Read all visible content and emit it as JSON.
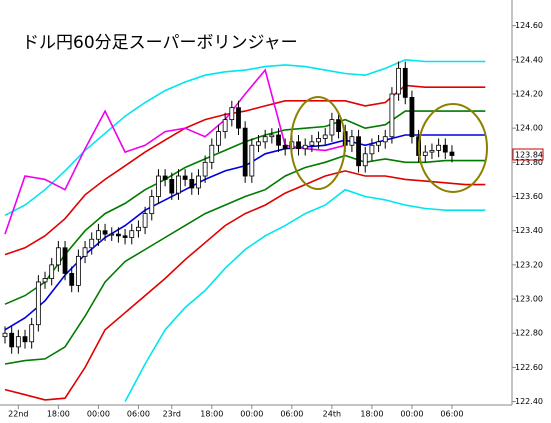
{
  "chart_data": {
    "type": "candlestick",
    "title": "ドル円60分足スーパーボリンジャー",
    "last_price_label": "123.84",
    "up_color": "#ffffff",
    "down_color": "#000000",
    "xlim": [
      -0.75,
      76
    ],
    "ylim": [
      122.38,
      124.75
    ],
    "xticks": [
      {
        "value": 2,
        "label": "22nd"
      },
      {
        "value": 8,
        "label": "18:00"
      },
      {
        "value": 14,
        "label": "00:00"
      },
      {
        "value": 20,
        "label": "06:00"
      },
      {
        "value": 25,
        "label": "23rd"
      },
      {
        "value": 31,
        "label": "18:00"
      },
      {
        "value": 37,
        "label": "00:00"
      },
      {
        "value": 43,
        "label": "06:00"
      },
      {
        "value": 49,
        "label": "24th"
      },
      {
        "value": 55,
        "label": "18:00"
      },
      {
        "value": 61,
        "label": "00:00"
      },
      {
        "value": 67,
        "label": "06:00"
      }
    ],
    "yticks": [
      {
        "value": 124.6,
        "label": "124.60"
      },
      {
        "value": 124.4,
        "label": "124.40"
      },
      {
        "value": 124.2,
        "label": "124.20"
      },
      {
        "value": 124.0,
        "label": "124.00"
      },
      {
        "value": 123.8,
        "label": "123.80"
      },
      {
        "value": 123.6,
        "label": "123.60"
      },
      {
        "value": 123.4,
        "label": "123.40"
      },
      {
        "value": 123.2,
        "label": "123.20"
      },
      {
        "value": 123.0,
        "label": "123.00"
      },
      {
        "value": 122.8,
        "label": "122.80"
      },
      {
        "value": 122.6,
        "label": "122.60"
      },
      {
        "value": 122.4,
        "label": "122.40"
      }
    ],
    "open": [
      122.78,
      122.8,
      122.72,
      122.78,
      122.75,
      122.85,
      123.1,
      123.12,
      123.2,
      123.3,
      123.15,
      123.08,
      123.25,
      123.3,
      123.35,
      123.4,
      123.38,
      123.38,
      123.37,
      123.36,
      123.4,
      123.42,
      123.5,
      123.6,
      123.72,
      123.7,
      123.62,
      123.72,
      123.7,
      123.65,
      123.72,
      123.8,
      123.9,
      123.98,
      124.05,
      124.12,
      124.0,
      123.72,
      123.9,
      123.92,
      123.95,
      123.96,
      123.9,
      123.88,
      123.92,
      123.88,
      123.9,
      123.92,
      123.94,
      123.96,
      124.05,
      123.98,
      123.9,
      123.95,
      123.78,
      123.85,
      123.9,
      123.92,
      123.95,
      124.2,
      124.35,
      124.18,
      123.95,
      123.84,
      123.86,
      123.87,
      123.9,
      123.86
    ],
    "high": [
      122.84,
      122.84,
      122.82,
      122.82,
      122.89,
      123.14,
      123.16,
      123.24,
      123.34,
      123.34,
      123.19,
      123.29,
      123.34,
      123.39,
      123.44,
      123.44,
      123.42,
      123.42,
      123.41,
      123.44,
      123.46,
      123.54,
      123.64,
      123.76,
      123.76,
      123.74,
      123.76,
      123.76,
      123.74,
      123.76,
      123.84,
      123.94,
      124.02,
      124.09,
      124.16,
      124.16,
      124.04,
      123.94,
      123.96,
      123.99,
      124.0,
      124.0,
      123.94,
      123.96,
      123.96,
      123.94,
      123.96,
      123.98,
      124.0,
      124.09,
      124.09,
      124.02,
      123.99,
      123.99,
      123.89,
      123.94,
      123.96,
      123.99,
      124.24,
      124.39,
      124.39,
      124.22,
      123.99,
      123.9,
      123.91,
      123.94,
      123.94,
      123.9
    ],
    "low": [
      122.74,
      122.68,
      122.68,
      122.71,
      122.71,
      122.81,
      123.06,
      123.08,
      123.16,
      123.11,
      123.04,
      123.04,
      123.21,
      123.26,
      123.31,
      123.34,
      123.34,
      123.33,
      123.32,
      123.32,
      123.36,
      123.38,
      123.46,
      123.56,
      123.66,
      123.58,
      123.58,
      123.66,
      123.61,
      123.61,
      123.68,
      123.76,
      123.86,
      123.94,
      124.01,
      123.96,
      123.68,
      123.68,
      123.86,
      123.88,
      123.91,
      123.86,
      123.84,
      123.84,
      123.84,
      123.84,
      123.86,
      123.88,
      123.9,
      123.92,
      123.94,
      123.86,
      123.86,
      123.74,
      123.74,
      123.81,
      123.86,
      123.88,
      123.91,
      124.16,
      124.14,
      123.91,
      123.8,
      123.8,
      123.82,
      123.83,
      123.82,
      123.8
    ],
    "close": [
      122.8,
      122.72,
      122.78,
      122.75,
      122.85,
      123.1,
      123.12,
      123.2,
      123.3,
      123.15,
      123.08,
      123.25,
      123.3,
      123.35,
      123.4,
      123.38,
      123.38,
      123.37,
      123.36,
      123.4,
      123.42,
      123.5,
      123.6,
      123.72,
      123.7,
      123.62,
      123.72,
      123.7,
      123.65,
      123.72,
      123.8,
      123.9,
      123.98,
      124.05,
      124.12,
      124.0,
      123.72,
      123.9,
      123.92,
      123.95,
      123.96,
      123.9,
      123.88,
      123.92,
      123.88,
      123.9,
      123.92,
      123.94,
      123.96,
      124.05,
      123.98,
      123.9,
      123.95,
      123.78,
      123.85,
      123.9,
      123.92,
      123.95,
      124.2,
      124.35,
      124.18,
      123.95,
      123.84,
      123.86,
      123.87,
      123.9,
      123.86,
      123.84
    ],
    "series": [
      {
        "color": "#00e5ee",
        "x": [
          0,
          3,
          6,
          9,
          12,
          15,
          18,
          21,
          24,
          27,
          30,
          33,
          36,
          39,
          42,
          45,
          48,
          51,
          54,
          57,
          60,
          63,
          66,
          69,
          72
        ],
        "values": [
          123.49,
          123.55,
          123.64,
          123.75,
          123.87,
          123.97,
          124.07,
          124.15,
          124.22,
          124.27,
          124.31,
          124.33,
          124.34,
          124.36,
          124.37,
          124.36,
          124.34,
          124.32,
          124.31,
          124.35,
          124.4,
          124.39,
          124.39,
          124.39,
          124.39
        ]
      },
      {
        "color": "#e00000",
        "x": [
          0,
          3,
          6,
          9,
          12,
          15,
          18,
          21,
          24,
          27,
          30,
          33,
          36,
          39,
          42,
          45,
          48,
          51,
          54,
          57,
          60,
          63,
          66,
          69,
          72
        ],
        "values": [
          123.26,
          123.3,
          123.37,
          123.47,
          123.61,
          123.7,
          123.78,
          123.86,
          123.93,
          124.0,
          124.05,
          124.08,
          124.1,
          124.13,
          124.16,
          124.16,
          124.16,
          124.16,
          124.13,
          124.15,
          124.25,
          124.24,
          124.24,
          124.24,
          124.24
        ]
      },
      {
        "color": "#007a00",
        "x": [
          0,
          3,
          6,
          9,
          12,
          15,
          18,
          21,
          24,
          27,
          30,
          33,
          36,
          39,
          42,
          45,
          48,
          51,
          54,
          57,
          60,
          63,
          66,
          69,
          72
        ],
        "values": [
          122.97,
          123.02,
          123.1,
          123.26,
          123.4,
          123.5,
          123.56,
          123.64,
          123.7,
          123.77,
          123.82,
          123.87,
          123.92,
          123.96,
          123.99,
          124.0,
          124.01,
          124.05,
          124.0,
          124.02,
          124.1,
          124.1,
          124.1,
          124.1,
          124.1
        ]
      },
      {
        "color": "#0000e0",
        "x": [
          0,
          3,
          6,
          9,
          12,
          15,
          18,
          21,
          24,
          27,
          30,
          33,
          36,
          39,
          42,
          45,
          48,
          51,
          54,
          57,
          60,
          63,
          66,
          69,
          72
        ],
        "values": [
          122.82,
          122.89,
          122.99,
          123.14,
          123.26,
          123.36,
          123.43,
          123.52,
          123.58,
          123.64,
          123.7,
          123.75,
          123.78,
          123.85,
          123.88,
          123.89,
          123.9,
          123.93,
          123.9,
          123.93,
          123.96,
          123.96,
          123.96,
          123.96,
          123.96
        ]
      },
      {
        "color": "#007a00",
        "x": [
          0,
          3,
          6,
          9,
          12,
          15,
          18,
          21,
          24,
          27,
          30,
          33,
          36,
          39,
          42,
          45,
          48,
          51,
          54,
          57,
          60,
          63,
          66,
          69,
          72
        ],
        "values": [
          122.62,
          122.64,
          122.65,
          122.72,
          122.9,
          123.1,
          123.22,
          123.29,
          123.36,
          123.43,
          123.5,
          123.55,
          123.6,
          123.64,
          123.72,
          123.77,
          123.8,
          123.84,
          123.8,
          123.82,
          123.8,
          123.8,
          123.81,
          123.81,
          123.81
        ]
      },
      {
        "color": "#e00000",
        "x": [
          0,
          3,
          6,
          9,
          12,
          15,
          18,
          21,
          24,
          27,
          30,
          33,
          36,
          39,
          42,
          45,
          48,
          51,
          54,
          57,
          60,
          63,
          66,
          69,
          72
        ],
        "values": [
          122.47,
          122.44,
          122.41,
          122.42,
          122.6,
          122.82,
          122.92,
          123.02,
          123.12,
          123.23,
          123.33,
          123.43,
          123.5,
          123.55,
          123.62,
          123.67,
          123.72,
          123.75,
          123.72,
          123.72,
          123.7,
          123.69,
          123.68,
          123.67,
          123.67
        ]
      },
      {
        "color": "#00e5ee",
        "x": [
          0,
          3,
          6,
          9,
          12,
          15,
          18,
          21,
          24,
          27,
          30,
          33,
          36,
          39,
          42,
          45,
          48,
          51,
          54,
          57,
          60,
          63,
          66,
          69,
          72
        ],
        "values": [
          null,
          null,
          null,
          null,
          null,
          null,
          122.4,
          122.62,
          122.82,
          122.95,
          123.05,
          123.18,
          123.29,
          123.37,
          123.43,
          123.5,
          123.55,
          123.64,
          123.6,
          123.58,
          123.55,
          123.53,
          123.52,
          123.52,
          123.52
        ]
      },
      {
        "color": "#ee00ee",
        "x": [
          0,
          3,
          6,
          9,
          12,
          15,
          18,
          21,
          24,
          27,
          30,
          33,
          36,
          39,
          42,
          45,
          48,
          51
        ],
        "values": [
          123.38,
          123.72,
          123.7,
          123.64,
          123.88,
          124.1,
          123.86,
          123.9,
          123.98,
          124.0,
          123.95,
          124.05,
          124.2,
          124.34,
          123.9,
          123.88,
          123.87,
          123.9
        ]
      }
    ]
  }
}
